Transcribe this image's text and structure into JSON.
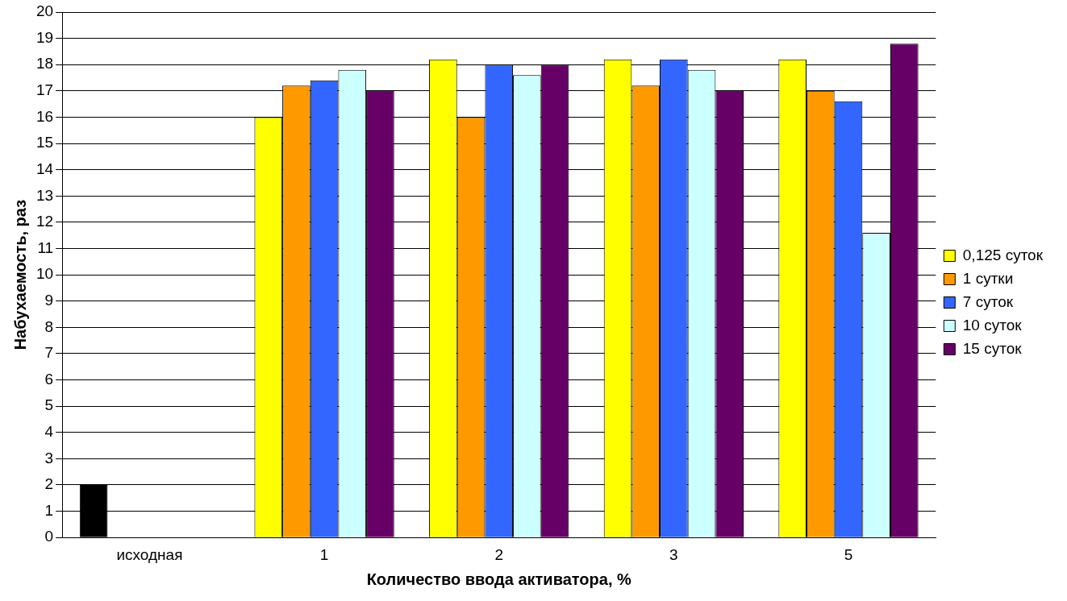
{
  "chart_data": {
    "type": "bar",
    "xlabel": "Количество ввода активатора, %",
    "ylabel": "Набухаемость, раз",
    "categories": [
      "исходная",
      "1",
      "2",
      "3",
      "5"
    ],
    "series": [
      {
        "name": "0,125 суток",
        "color": "#ffff00",
        "colors": [
          "#000000",
          "#ffff00",
          "#ffff00",
          "#ffff00",
          "#ffff00"
        ],
        "values": [
          2,
          16,
          18.2,
          18.2,
          18.2
        ]
      },
      {
        "name": "1 сутки",
        "color": "#ff9900",
        "values": [
          null,
          17.2,
          16,
          17.2,
          17
        ]
      },
      {
        "name": "7 суток",
        "color": "#3366ff",
        "values": [
          null,
          17.4,
          18,
          18.2,
          16.6
        ]
      },
      {
        "name": "10 суток",
        "color": "#ccffff",
        "values": [
          null,
          17.8,
          17.6,
          17.8,
          11.6
        ]
      },
      {
        "name": "15 суток",
        "color": "#660066",
        "values": [
          null,
          17,
          18,
          17,
          18.8
        ]
      }
    ],
    "ylim": [
      0,
      20
    ],
    "yticks": [
      0,
      1,
      2,
      3,
      4,
      5,
      6,
      7,
      8,
      9,
      10,
      11,
      12,
      13,
      14,
      15,
      16,
      17,
      18,
      19,
      20
    ],
    "grid": "y",
    "legend": "right"
  }
}
